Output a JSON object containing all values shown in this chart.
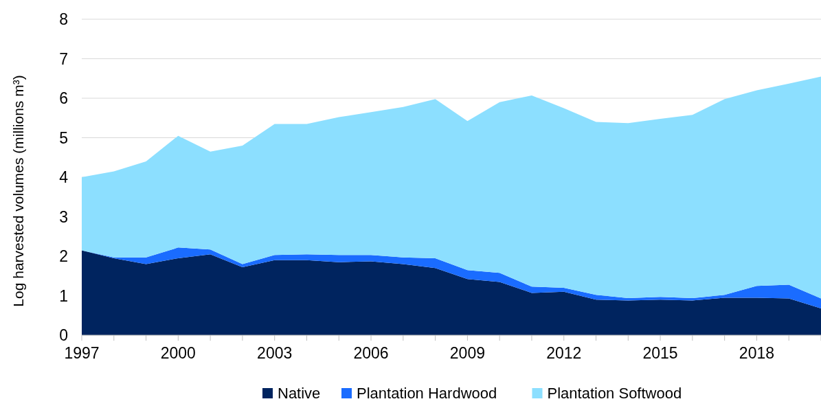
{
  "chart_data": {
    "type": "area",
    "stacked": true,
    "ylabel": "Log harvested volumes (millions m³)",
    "x": [
      1997,
      1998,
      1999,
      2000,
      2001,
      2002,
      2003,
      2004,
      2005,
      2006,
      2007,
      2008,
      2009,
      2010,
      2011,
      2012,
      2013,
      2014,
      2015,
      2016,
      2017,
      2018,
      2019,
      2020
    ],
    "series": [
      {
        "name": "Native",
        "color": "#00245f",
        "values": [
          2.15,
          1.95,
          1.8,
          1.95,
          2.05,
          1.72,
          1.9,
          1.9,
          1.85,
          1.87,
          1.8,
          1.7,
          1.42,
          1.35,
          1.07,
          1.1,
          0.9,
          0.88,
          0.9,
          0.88,
          0.95,
          0.95,
          0.93,
          0.68
        ]
      },
      {
        "name": "Plantation Hardwood",
        "color": "#1a6cff",
        "values": [
          0,
          0.02,
          0.17,
          0.27,
          0.12,
          0.08,
          0.13,
          0.15,
          0.18,
          0.16,
          0.17,
          0.25,
          0.23,
          0.23,
          0.16,
          0.1,
          0.12,
          0.06,
          0.07,
          0.06,
          0.07,
          0.3,
          0.35,
          0.25
        ]
      },
      {
        "name": "Plantation Softwood",
        "color": "#8cdfff",
        "values": [
          1.85,
          2.18,
          2.43,
          2.83,
          2.48,
          3.0,
          3.32,
          3.3,
          3.49,
          3.62,
          3.81,
          4.03,
          3.77,
          4.32,
          4.84,
          4.55,
          4.38,
          4.43,
          4.51,
          4.64,
          4.96,
          4.95,
          5.09,
          5.62
        ]
      }
    ],
    "xlim": [
      1997,
      2020
    ],
    "xticks": [
      1997,
      {
        "value": 1998,
        "label": null
      },
      {
        "value": 1999,
        "label": null
      },
      2000,
      {
        "value": 2001,
        "label": null
      },
      {
        "value": 2002,
        "label": null
      },
      2003,
      {
        "value": 2004,
        "label": null
      },
      {
        "value": 2005,
        "label": null
      },
      2006,
      {
        "value": 2007,
        "label": null
      },
      {
        "value": 2008,
        "label": null
      },
      2009,
      {
        "value": 2010,
        "label": null
      },
      {
        "value": 2011,
        "label": null
      },
      2012,
      {
        "value": 2013,
        "label": null
      },
      {
        "value": 2014,
        "label": null
      },
      2015,
      {
        "value": 2016,
        "label": null
      },
      {
        "value": 2017,
        "label": null
      },
      2018,
      {
        "value": 2019,
        "label": null
      },
      {
        "value": 2020,
        "label": null
      }
    ],
    "ylim": [
      0,
      8
    ],
    "yticks": [
      0,
      1,
      2,
      3,
      4,
      5,
      6,
      7,
      8
    ],
    "grid": "y",
    "legend": "bottom"
  }
}
